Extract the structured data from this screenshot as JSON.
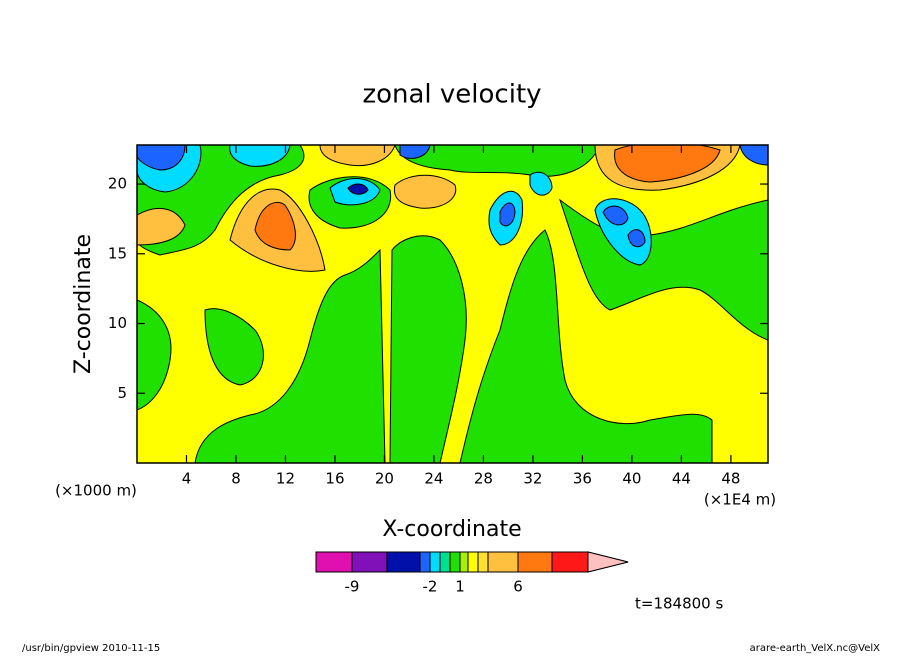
{
  "chart_data": {
    "type": "contour",
    "title": "zonal velocity",
    "xlabel": "X-coordinate",
    "ylabel": "Z-coordinate",
    "xunit": "(×1E4 m)",
    "yunit": "(×1000 m)",
    "xlim": [
      0,
      51
    ],
    "xticks": [
      4,
      8,
      12,
      16,
      20,
      24,
      28,
      32,
      36,
      40,
      44,
      48
    ],
    "ylim": [
      0,
      22.8
    ],
    "yticks": [
      5,
      10,
      15,
      20
    ],
    "colorbar": {
      "colors": [
        "#e010b0",
        "#8010b8",
        "#0010a8",
        "#1c64ff",
        "#00dcff",
        "#00e090",
        "#20e000",
        "#a8f000",
        "#ffff00",
        "#ffe030",
        "#ffc040",
        "#ff7810",
        "#ff1818",
        "#ff8080",
        "#ffc0c0"
      ],
      "ticks": [
        -9,
        -2,
        1,
        6
      ]
    },
    "time_label": "t=184800 s",
    "footer_left": "/usr/bin/gpview  2010-11-15",
    "footer_right": "arare-earth_VelX.nc@VelX"
  }
}
